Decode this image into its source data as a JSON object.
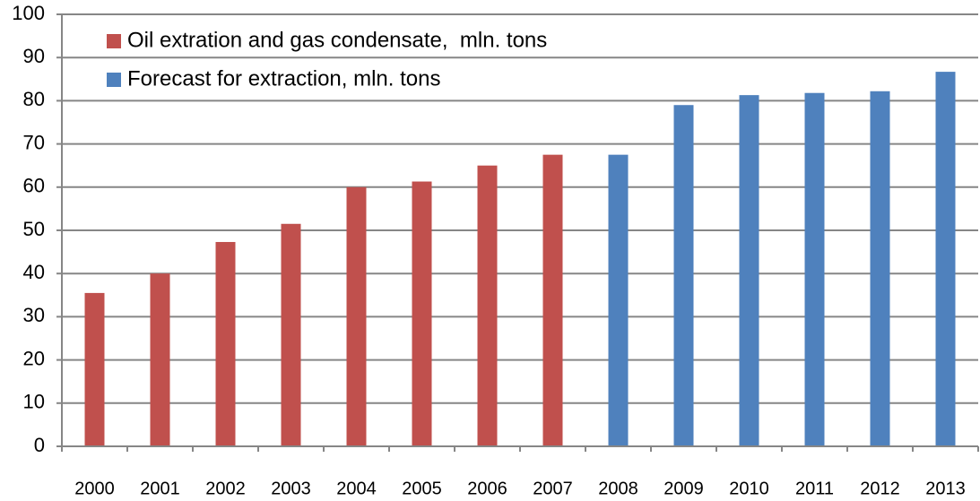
{
  "chart_data": {
    "type": "bar",
    "categories": [
      "2000",
      "2001",
      "2002",
      "2003",
      "2004",
      "2005",
      "2006",
      "2007",
      "2008",
      "2009",
      "2010",
      "2011",
      "2012",
      "2013"
    ],
    "series": [
      {
        "name": "Oil extration and gas condensate,  mln. tons",
        "color": "#c0504d",
        "values": [
          35.5,
          40,
          47.3,
          51.5,
          60,
          61.3,
          65,
          67.5,
          null,
          null,
          null,
          null,
          null,
          null
        ]
      },
      {
        "name": "Forecast for extraction, mln. tons",
        "color": "#4f81bd",
        "values": [
          null,
          null,
          null,
          null,
          null,
          null,
          null,
          null,
          67.5,
          79,
          81.3,
          81.8,
          82.2,
          86.7
        ]
      }
    ],
    "ylim": [
      0,
      100
    ],
    "yticks": [
      0,
      10,
      20,
      30,
      40,
      50,
      60,
      70,
      80,
      90,
      100
    ],
    "grid": true,
    "legend": "upper left"
  }
}
